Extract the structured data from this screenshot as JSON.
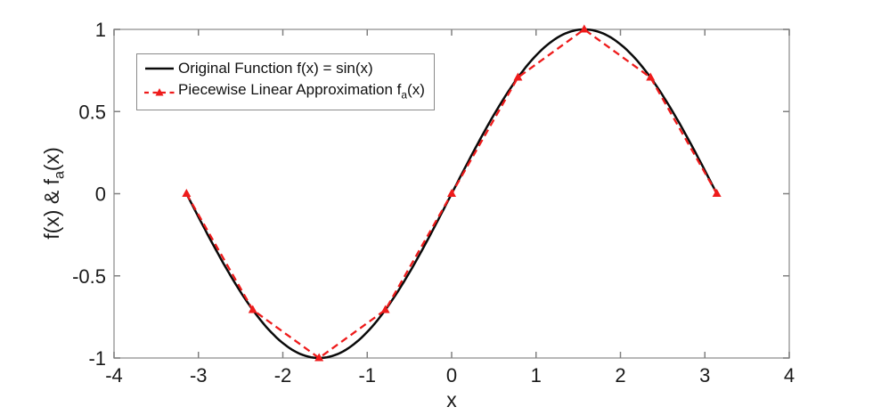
{
  "figure": {
    "background": "#ffffff"
  },
  "axes": {
    "xlabel": "x",
    "ylabel": {
      "main": "f(x) & f",
      "sub": "a",
      "suffix": "(x)"
    },
    "box_color": "#a0a0a0",
    "tick_color": "#808080",
    "tick_label_color": "#1a1a1a"
  },
  "legend": {
    "entries": [
      {
        "swatch": "solid-black-line",
        "label": "Original Function f(x) = sin(x)"
      },
      {
        "swatch": "dashed-red-line-with-triangle",
        "label_main": "Piecewise Linear Approximation f",
        "label_sub": "a",
        "label_suffix": "(x)"
      }
    ]
  },
  "chart_data": {
    "type": "line",
    "title": "",
    "xlabel": "x",
    "ylabel": "f(x) & f_a(x)",
    "xlim": [
      -4,
      4
    ],
    "ylim": [
      -1,
      1
    ],
    "x_ticks": [
      -4,
      -3,
      -2,
      -1,
      0,
      1,
      2,
      3,
      4
    ],
    "y_ticks": [
      -1,
      -0.5,
      0,
      0.5,
      1
    ],
    "grid": false,
    "legend_position": "upper-left-inside",
    "series": [
      {
        "name": "Original Function f(x) = sin(x)",
        "type": "function",
        "function": "sin",
        "x_range": [
          -3.1416,
          3.1416
        ],
        "color": "#0a0a0a",
        "line_style": "solid",
        "line_width": 2.5,
        "marker": "none"
      },
      {
        "name": "Piecewise Linear Approximation f_a(x)",
        "type": "line",
        "x": [
          -3.1416,
          -2.3562,
          -1.5708,
          -0.7854,
          0,
          0.7854,
          1.5708,
          2.3562,
          3.1416
        ],
        "y": [
          0,
          -0.7071,
          -1,
          -0.7071,
          0,
          0.7071,
          1,
          0.7071,
          0
        ],
        "color": "#ee1b1b",
        "line_style": "dashed",
        "line_width": 2.3,
        "marker": "triangle-up"
      }
    ]
  }
}
